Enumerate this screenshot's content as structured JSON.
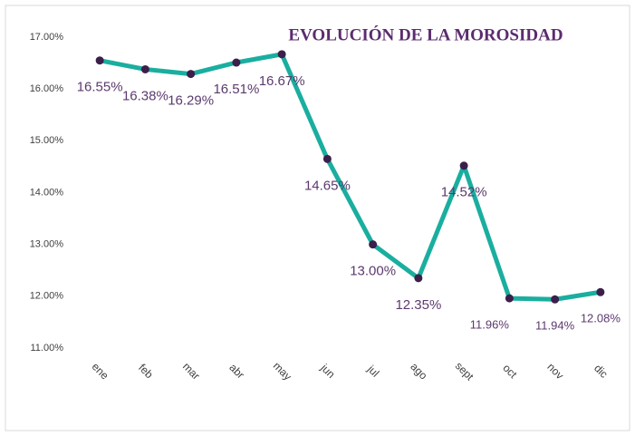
{
  "chart_data": {
    "type": "line",
    "title": "EVOLUCIÓN DE LA MOROSIDAD",
    "categories": [
      "ene",
      "feb",
      "mar",
      "abr",
      "may",
      "jun",
      "jul",
      "ago",
      "sept",
      "oct",
      "nov",
      "dic"
    ],
    "series": [
      {
        "name": "Morosidad",
        "color": "#1aae9f",
        "marker_color": "#3b1f4a",
        "values": [
          16.55,
          16.38,
          16.29,
          16.51,
          16.67,
          14.65,
          13.0,
          12.35,
          14.52,
          11.96,
          11.94,
          12.08
        ],
        "value_labels": [
          "16.55%",
          "16.38%",
          "16.29%",
          "16.51%",
          "16.67%",
          "14.65%",
          "13.00%",
          "12.35%",
          "14.52%",
          "11.96%",
          "11.94%",
          "12.08%"
        ]
      }
    ],
    "ylim": [
      11,
      17
    ],
    "yticks": [
      {
        "value": 11,
        "label": "11.00%"
      },
      {
        "value": 12,
        "label": "12.00%"
      },
      {
        "value": 13,
        "label": "13.00%"
      },
      {
        "value": 14,
        "label": "14.00%"
      },
      {
        "value": 15,
        "label": "15.00%"
      },
      {
        "value": 16,
        "label": "16.00%"
      },
      {
        "value": 17,
        "label": "17.00%"
      }
    ],
    "grid": false
  }
}
